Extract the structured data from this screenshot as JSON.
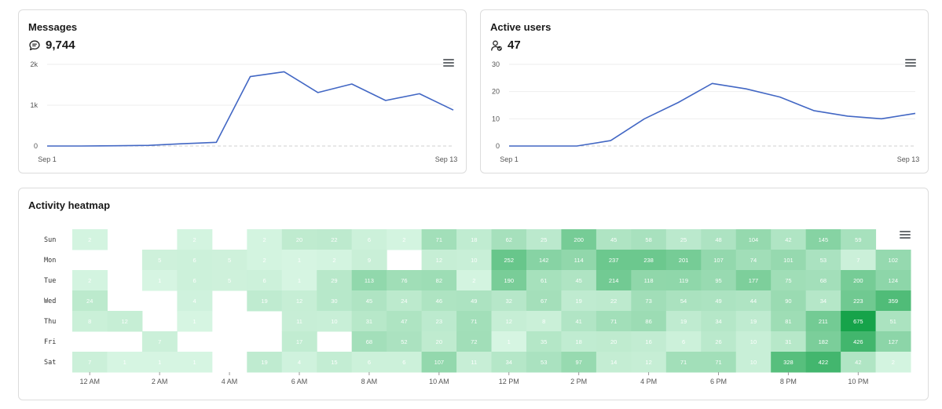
{
  "messages_card": {
    "title": "Messages",
    "value": "9,744",
    "icon": "chat-bubble-icon",
    "chart_data": {
      "type": "line",
      "x": [
        "Sep 1",
        "Sep 2",
        "Sep 3",
        "Sep 4",
        "Sep 5",
        "Sep 6",
        "Sep 7",
        "Sep 8",
        "Sep 9",
        "Sep 10",
        "Sep 11",
        "Sep 12",
        "Sep 13"
      ],
      "values": [
        0,
        0,
        5,
        15,
        55,
        90,
        1700,
        1820,
        1310,
        1520,
        1115,
        1280,
        880
      ],
      "xtick_labels": [
        "Sep 1",
        "Sep 13"
      ],
      "ytick_labels": [
        "0",
        "1k",
        "2k"
      ],
      "ylim": [
        0,
        2000
      ],
      "color": "#4267c4"
    }
  },
  "active_users_card": {
    "title": "Active users",
    "value": "47",
    "icon": "user-check-icon",
    "chart_data": {
      "type": "line",
      "x": [
        "Sep 1",
        "Sep 2",
        "Sep 3",
        "Sep 4",
        "Sep 5",
        "Sep 6",
        "Sep 7",
        "Sep 8",
        "Sep 9",
        "Sep 10",
        "Sep 11",
        "Sep 12",
        "Sep 13"
      ],
      "values": [
        0,
        0,
        0,
        2,
        10,
        16,
        23,
        21,
        18,
        13,
        11,
        10,
        12
      ],
      "xtick_labels": [
        "Sep 1",
        "Sep 13"
      ],
      "ytick_labels": [
        "0",
        "10",
        "20",
        "30"
      ],
      "ylim": [
        0,
        30
      ],
      "color": "#4267c4"
    }
  },
  "heatmap_card": {
    "title": "Activity heatmap",
    "chart_data": {
      "type": "heatmap",
      "rows": [
        "Sun",
        "Mon",
        "Tue",
        "Wed",
        "Thu",
        "Fri",
        "Sat"
      ],
      "columns": [
        "12 AM",
        "",
        "2 AM",
        "",
        "4 AM",
        "",
        "6 AM",
        "",
        "8 AM",
        "",
        "10 AM",
        "",
        "12 PM",
        "",
        "2 PM",
        "",
        "4 PM",
        "",
        "6 PM",
        "",
        "8 PM",
        "",
        "10 PM",
        ""
      ],
      "x_tick_labels": [
        "12 AM",
        "2 AM",
        "4 AM",
        "6 AM",
        "8 AM",
        "10 AM",
        "12 PM",
        "2 PM",
        "4 PM",
        "6 PM",
        "8 PM",
        "10 PM"
      ],
      "values": [
        [
          2,
          null,
          null,
          2,
          null,
          2,
          20,
          22,
          6,
          2,
          71,
          18,
          62,
          25,
          200,
          45,
          58,
          25,
          48,
          104,
          42,
          145,
          59,
          null
        ],
        [
          null,
          null,
          5,
          6,
          5,
          2,
          1,
          2,
          9,
          null,
          12,
          10,
          252,
          142,
          114,
          237,
          238,
          201,
          107,
          74,
          101,
          53,
          7,
          102
        ],
        [
          2,
          null,
          1,
          6,
          5,
          6,
          1,
          29,
          113,
          76,
          82,
          2,
          190,
          61,
          45,
          214,
          118,
          119,
          95,
          177,
          75,
          68,
          200,
          124
        ],
        [
          24,
          null,
          null,
          4,
          null,
          19,
          12,
          30,
          45,
          24,
          46,
          49,
          32,
          67,
          19,
          22,
          73,
          54,
          49,
          44,
          90,
          34,
          223,
          359
        ],
        [
          8,
          12,
          null,
          1,
          null,
          null,
          11,
          10,
          31,
          47,
          23,
          71,
          12,
          8,
          41,
          71,
          86,
          19,
          34,
          19,
          81,
          211,
          675,
          51
        ],
        [
          null,
          null,
          7,
          null,
          null,
          null,
          17,
          null,
          68,
          52,
          20,
          72,
          1,
          35,
          18,
          20,
          16,
          6,
          26,
          10,
          31,
          182,
          426,
          127
        ],
        [
          7,
          1,
          1,
          1,
          null,
          19,
          4,
          15,
          6,
          6,
          107,
          11,
          34,
          53,
          97,
          14,
          12,
          71,
          71,
          10,
          328,
          422,
          42,
          2
        ]
      ],
      "color_low": "#dbf7e6",
      "color_high": "#16a34a"
    }
  }
}
